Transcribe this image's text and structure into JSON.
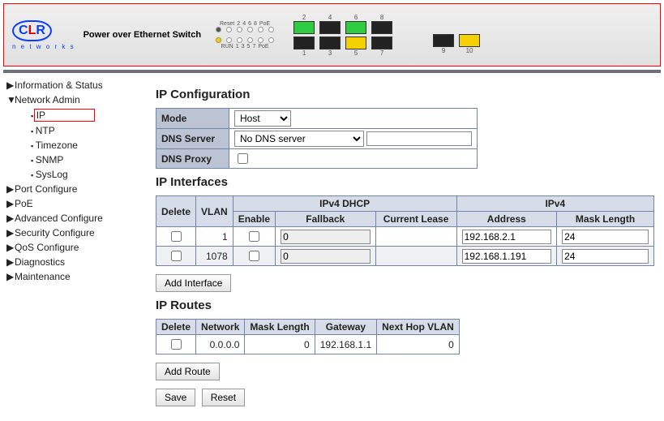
{
  "header": {
    "brand": "CLR",
    "brand_sub": "n e t w o r k s",
    "tagline": "Power over Ethernet Switch",
    "led_top_labels": [
      "Reset",
      "2",
      "4",
      "6",
      "8",
      "PoE"
    ],
    "led_bottom_labels": [
      "RUN",
      "1",
      "3",
      "5",
      "7",
      "PoE"
    ],
    "top_ports": [
      "2",
      "4",
      "6",
      "8"
    ],
    "bottom_ports": [
      "1",
      "3",
      "5",
      "7"
    ],
    "right_ports": [
      "9",
      "10"
    ],
    "port_colors_top": [
      "green",
      "black",
      "green",
      "black"
    ],
    "port_colors_bottom": [
      "black",
      "black",
      "yellow",
      "black"
    ],
    "right_port_colors": [
      "black",
      "yellow"
    ]
  },
  "sidebar": {
    "items": [
      {
        "label": "Information & Status",
        "arrow": "▶"
      },
      {
        "label": "Network Admin",
        "arrow": "▼",
        "children": [
          {
            "label": "IP",
            "highlight": true
          },
          {
            "label": "NTP"
          },
          {
            "label": "Timezone"
          },
          {
            "label": "SNMP"
          },
          {
            "label": "SysLog"
          }
        ]
      },
      {
        "label": "Port Configure",
        "arrow": "▶"
      },
      {
        "label": "PoE",
        "arrow": "▶"
      },
      {
        "label": "Advanced Configure",
        "arrow": "▶"
      },
      {
        "label": "Security Configure",
        "arrow": "▶"
      },
      {
        "label": "QoS Configure",
        "arrow": "▶"
      },
      {
        "label": "Diagnostics",
        "arrow": "▶"
      },
      {
        "label": "Maintenance",
        "arrow": "▶"
      }
    ]
  },
  "ipconfig": {
    "title": "IP Configuration",
    "rows": {
      "mode": {
        "label": "Mode",
        "value": "Host"
      },
      "dns": {
        "label": "DNS Server",
        "value": "No DNS server",
        "extra": ""
      },
      "proxy": {
        "label": "DNS Proxy",
        "checked": false
      }
    }
  },
  "interfaces": {
    "title": "IP Interfaces",
    "headers": {
      "delete": "Delete",
      "vlan": "VLAN",
      "dhcp": "IPv4 DHCP",
      "enable": "Enable",
      "fallback": "Fallback",
      "lease": "Current Lease",
      "ipv4": "IPv4",
      "address": "Address",
      "mask": "Mask Length"
    },
    "rows": [
      {
        "delete": false,
        "vlan": "1",
        "enable": false,
        "fallback": "0",
        "lease": "",
        "address": "192.168.2.1",
        "mask": "24"
      },
      {
        "delete": false,
        "vlan": "1078",
        "enable": false,
        "fallback": "0",
        "lease": "",
        "address": "192.168.1.191",
        "mask": "24"
      }
    ],
    "add_btn": "Add Interface"
  },
  "routes": {
    "title": "IP Routes",
    "headers": {
      "delete": "Delete",
      "network": "Network",
      "mask": "Mask Length",
      "gateway": "Gateway",
      "nhv": "Next Hop VLAN"
    },
    "rows": [
      {
        "delete": false,
        "network": "0.0.0.0",
        "mask": "0",
        "gateway": "192.168.1.1",
        "nhv": "0"
      }
    ],
    "add_btn": "Add Route"
  },
  "actions": {
    "save": "Save",
    "reset": "Reset"
  }
}
